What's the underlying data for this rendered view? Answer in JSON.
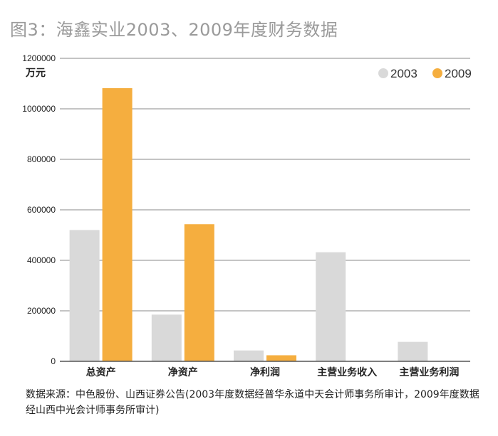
{
  "title": "图3：海鑫实业2003、2009年度财务数据",
  "source": "数据来源：中色股份、山西证券公告(2003年度数据经普华永道中天会计师事务所审计，2009年度数据经山西中光会计师事务所审计)",
  "colors": {
    "s2003": "#d9d9d9",
    "s2009": "#f5ae3f",
    "grid": "#8a8a8a",
    "axis": "#555555"
  },
  "chart_data": {
    "type": "bar",
    "unit_label": "万元",
    "ylim": [
      0,
      1200000
    ],
    "yticks": [
      0,
      200000,
      400000,
      600000,
      800000,
      1000000,
      1200000
    ],
    "grid": true,
    "legend_position": "top-right",
    "categories": [
      "总资产",
      "净资产",
      "净利润",
      "主营业务收入",
      "主营业务利润"
    ],
    "series": [
      {
        "name": "2003",
        "color": "#d9d9d9",
        "values": [
          520000,
          185000,
          43000,
          432000,
          77000
        ]
      },
      {
        "name": "2009",
        "color": "#f5ae3f",
        "values": [
          1082000,
          543000,
          24000,
          0,
          0
        ]
      }
    ]
  }
}
